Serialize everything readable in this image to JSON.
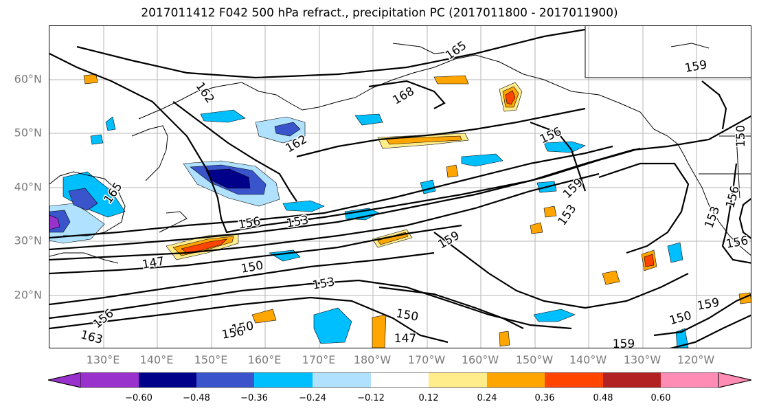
{
  "title": "2017011412 F042 500 hPa refract., precipitation PC (2017011800 - 2017011900)",
  "axes": {
    "lat_labels": [
      "60°N",
      "50°N",
      "40°N",
      "30°N",
      "20°N"
    ],
    "lon_labels": [
      "130°E",
      "140°E",
      "150°E",
      "160°E",
      "170°E",
      "180°W",
      "170°W",
      "160°W",
      "150°W",
      "140°W",
      "130°W",
      "120°W"
    ]
  },
  "contour_labels": [
    "165",
    "159",
    "162",
    "168",
    "162",
    "156",
    "165",
    "159",
    "153",
    "156",
    "153",
    "159",
    "147",
    "150",
    "153",
    "150",
    "147",
    "150",
    "156",
    "150",
    "159",
    "159",
    "153",
    "156",
    "156",
    "163",
    "156",
    "150"
  ],
  "colorbar": {
    "ticks": [
      "−0.60",
      "−0.48",
      "−0.36",
      "−0.24",
      "−0.12",
      "0.12",
      "0.24",
      "0.36",
      "0.48",
      "0.60"
    ],
    "colors": [
      "#9932cc",
      "#00008b",
      "#3a55cc",
      "#00bfff",
      "#b0e2ff",
      "#ffffff",
      "#ffec8b",
      "#ffa500",
      "#ff4500",
      "#b22222",
      "#ff8cb4"
    ]
  },
  "shading_colors": {
    "neg_lavender": "#b0e2ff",
    "neg_cyan": "#00bfff",
    "neg_blue": "#3a55cc",
    "neg_navy": "#00008b",
    "neg_purple": "#9932cc",
    "pos_yellow": "#ffec8b",
    "pos_orange": "#ffa500",
    "pos_red": "#ff4500"
  }
}
